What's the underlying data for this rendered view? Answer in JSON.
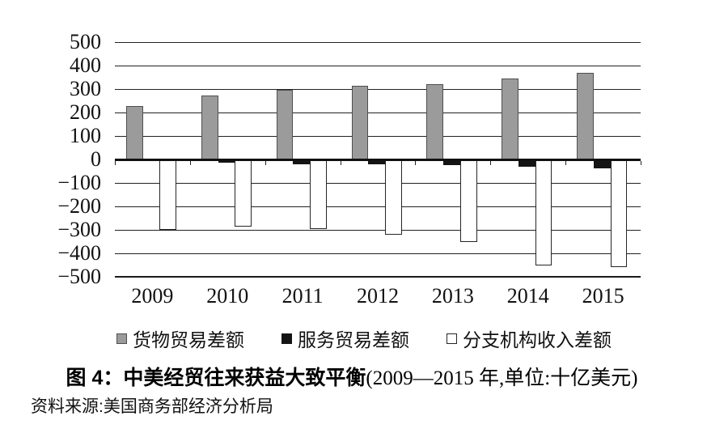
{
  "figure": {
    "title_bold": "图 4：中美经贸往来获益大致平衡",
    "title_suffix": "(2009—2015 年,单位:十亿美元)",
    "source": "资料来源:美国商务部经济分析局"
  },
  "chart_data": {
    "type": "bar",
    "title": "图 4：中美经贸往来获益大致平衡(2009—2015 年,单位:十亿美元)",
    "xlabel": "",
    "ylabel": "",
    "unit": "十亿美元",
    "ylim": [
      -500,
      500
    ],
    "ytick_step": 100,
    "grid": true,
    "legend_position": "bottom",
    "categories": [
      "2009",
      "2010",
      "2011",
      "2012",
      "2013",
      "2014",
      "2015"
    ],
    "series": [
      {
        "key": "goods-trade-balance",
        "name": "货物贸易差额",
        "fill": "#9b9b9b",
        "border": "#4f4f4f",
        "values": [
          227,
          273,
          295,
          315,
          320,
          344,
          368
        ]
      },
      {
        "key": "services-trade-balance",
        "name": "服务贸易差额",
        "fill": "#141414",
        "border": "#141414",
        "values": [
          -8,
          -14,
          -19,
          -22,
          -25,
          -31,
          -38
        ]
      },
      {
        "key": "branch-income-balance",
        "name": "分支机构收入差额",
        "fill": "#ffffff",
        "border": "#262626",
        "values": [
          -300,
          -285,
          -295,
          -320,
          -350,
          -450,
          -458
        ]
      }
    ],
    "colors": {
      "grid": "#222222",
      "axis": "#111111",
      "text": "#111111"
    }
  }
}
